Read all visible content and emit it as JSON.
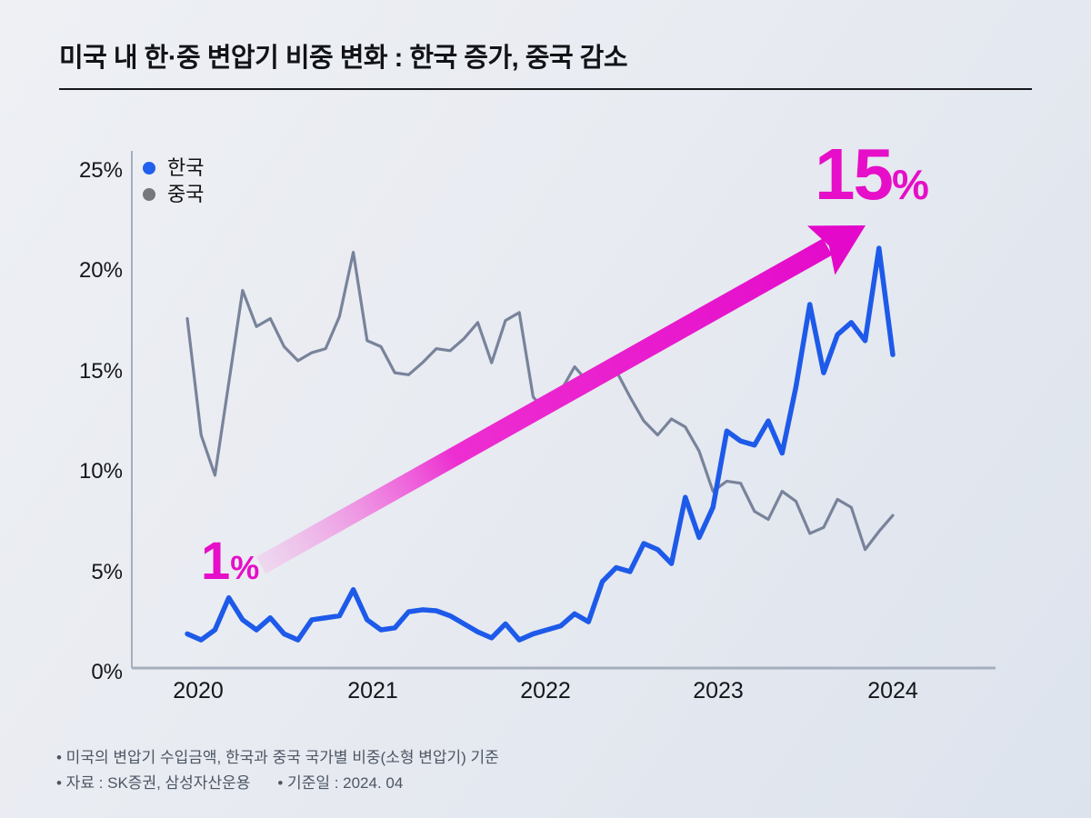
{
  "header": {
    "title": "미국 내 한·중 변압기 비중 변화 : 한국 증가, 중국 감소"
  },
  "legend": {
    "items": [
      {
        "label": "한국",
        "color": "#2160ee"
      },
      {
        "label": "중국",
        "color": "#76777c"
      }
    ]
  },
  "chart_data": {
    "type": "line",
    "title": "미국 내 한·중 변압기 비중 변화 : 한국 증가, 중국 감소",
    "x_interval": "monthly",
    "x_start": "2020-01",
    "x_end": "2024-04",
    "x_tick_labels": [
      "2020",
      "2021",
      "2022",
      "2023",
      "2024"
    ],
    "y_tick_values": [
      25,
      20,
      15,
      10,
      5,
      0
    ],
    "y_tick_labels": [
      "25%",
      "20%",
      "15%",
      "10%",
      "5%",
      "0%"
    ],
    "ylim": [
      0,
      25
    ],
    "grid": false,
    "legend_position": "top-left",
    "axis_color": "#a6aebd",
    "series": [
      {
        "name": "한국",
        "color": "#1e5ae9",
        "line_width": 5.5,
        "values": [
          1.7,
          1.4,
          1.9,
          3.5,
          2.4,
          1.9,
          2.5,
          1.7,
          1.4,
          2.4,
          2.5,
          2.6,
          3.9,
          2.4,
          1.9,
          2.0,
          2.8,
          2.9,
          2.85,
          2.6,
          2.2,
          1.8,
          1.5,
          2.2,
          1.4,
          1.7,
          1.9,
          2.1,
          2.7,
          2.3,
          4.3,
          5.0,
          4.8,
          6.2,
          5.9,
          5.2,
          8.5,
          6.5,
          8.0,
          11.8,
          11.3,
          11.1,
          12.3,
          10.7,
          14.0,
          18.1,
          14.7,
          16.6,
          17.2,
          16.3,
          20.9,
          15.6
        ]
      },
      {
        "name": "중국",
        "color": "#78839b",
        "line_width": 3.2,
        "values": [
          17.4,
          11.6,
          9.6,
          14.2,
          18.8,
          17.0,
          17.4,
          16.0,
          15.3,
          15.7,
          15.9,
          17.5,
          20.7,
          16.3,
          16.0,
          14.7,
          14.6,
          15.2,
          15.9,
          15.8,
          16.4,
          17.2,
          15.2,
          17.3,
          17.7,
          13.5,
          12.7,
          13.8,
          15.0,
          14.2,
          14.6,
          14.8,
          13.5,
          12.3,
          11.6,
          12.4,
          12.0,
          10.8,
          8.8,
          9.3,
          9.2,
          7.8,
          7.4,
          8.8,
          8.3,
          6.7,
          7.0,
          8.4,
          8.0,
          5.9,
          6.8,
          7.6
        ]
      }
    ]
  },
  "annotations": {
    "start": {
      "num": "1",
      "pct": "%"
    },
    "end": {
      "num": "15",
      "pct": "%"
    },
    "color": "#e60ec8",
    "arrow": {
      "tail_color": "#f3bfec",
      "head_color": "#e308ca"
    }
  },
  "footnotes": {
    "line1": "• 미국의 변압기 수입금액, 한국과 중국 국가별 비중(소형 변압기) 기준",
    "source": "• 자료 : SK증권, 삼성자산운용",
    "basis": "• 기준일 : 2024. 04"
  }
}
